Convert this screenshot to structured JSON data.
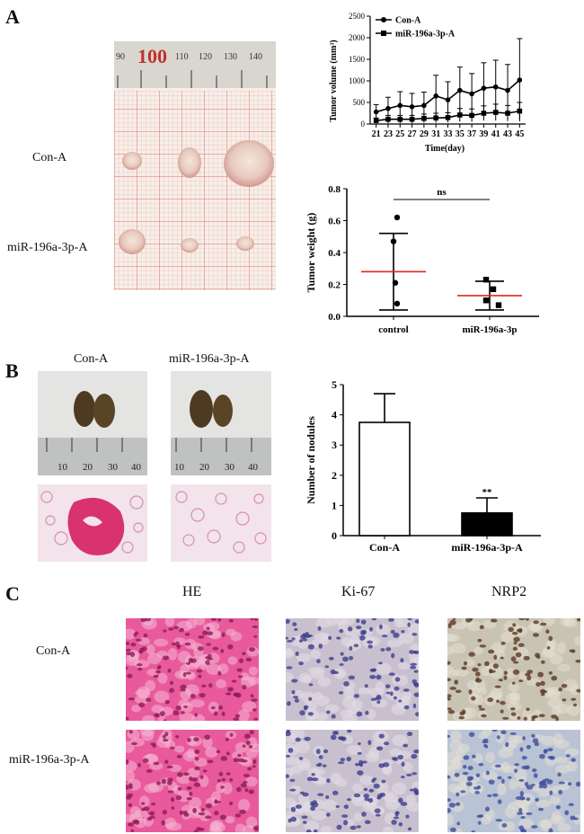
{
  "panels": {
    "a": "A",
    "b": "B",
    "c": "C"
  },
  "panel_a": {
    "row_labels": [
      "Con-A",
      "miR-196a-3p-A"
    ],
    "ruler_number": "100",
    "ruler_ticks": [
      "90",
      "110",
      "120",
      "130",
      "140"
    ]
  },
  "panel_b": {
    "col_labels": [
      "Con-A",
      "miR-196a-3p-A"
    ],
    "ruler_ticks": [
      "10",
      "20",
      "30",
      "40"
    ]
  },
  "panel_c": {
    "col_labels": [
      "HE",
      "Ki-67",
      "NRP2"
    ],
    "row_labels": [
      "Con-A",
      "miR-196a-3p-A"
    ]
  },
  "chart_data": [
    {
      "type": "line",
      "xlabel": "Time(day)",
      "ylabel": "Tumor volume (mm³)",
      "x": [
        21,
        23,
        25,
        27,
        29,
        31,
        33,
        35,
        37,
        39,
        41,
        43,
        45
      ],
      "ylim": [
        0,
        2500
      ],
      "yticks": [
        0,
        500,
        1000,
        1500,
        2000,
        2500
      ],
      "series": [
        {
          "name": "Con-A",
          "marker": "circle",
          "values": [
            280,
            360,
            430,
            400,
            430,
            650,
            560,
            780,
            700,
            830,
            860,
            780,
            1020
          ],
          "err": [
            170,
            260,
            320,
            310,
            310,
            480,
            420,
            540,
            470,
            590,
            620,
            600,
            960
          ]
        },
        {
          "name": "miR-196a-3p-A",
          "marker": "square",
          "values": [
            80,
            110,
            110,
            110,
            130,
            140,
            150,
            210,
            200,
            250,
            270,
            250,
            300
          ],
          "err": [
            60,
            90,
            90,
            90,
            100,
            110,
            110,
            150,
            150,
            170,
            190,
            180,
            200
          ]
        }
      ]
    },
    {
      "type": "scatter",
      "xlabel": "",
      "ylabel": "Tumor weight (g)",
      "categories": [
        "control",
        "miR-196a-3p"
      ],
      "ylim": [
        0,
        0.8
      ],
      "yticks": [
        "0.0",
        "0.2",
        "0.4",
        "0.6",
        "0.8"
      ],
      "annotation": "ns",
      "groups": [
        {
          "name": "control",
          "marker": "circle",
          "points": [
            0.62,
            0.47,
            0.21,
            0.08
          ],
          "mean": 0.28,
          "sd_low": 0.04,
          "sd_high": 0.52
        },
        {
          "name": "miR-196a-3p",
          "marker": "square",
          "points": [
            0.23,
            0.17,
            0.1,
            0.07
          ],
          "mean": 0.13,
          "sd_low": 0.04,
          "sd_high": 0.22
        }
      ]
    },
    {
      "type": "bar",
      "xlabel": "",
      "ylabel": "Number of nodules",
      "categories": [
        "Con-A",
        "miR-196a-3p-A"
      ],
      "values": [
        3.75,
        0.75
      ],
      "err": [
        0.95,
        0.5
      ],
      "ylim": [
        0,
        5
      ],
      "yticks": [
        0,
        1,
        2,
        3,
        4,
        5
      ],
      "annotation": "**"
    }
  ]
}
